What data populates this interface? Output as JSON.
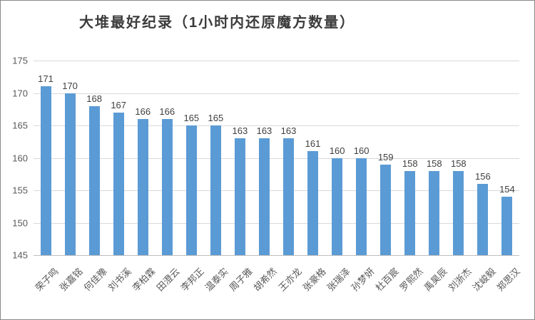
{
  "chart_data": {
    "type": "bar",
    "title": "大堆最好纪录（1小时内还原魔方数量）",
    "categories": [
      "荣子鸣",
      "张嘉铭",
      "何佳豫",
      "刘书溪",
      "李柏霖",
      "田澄云",
      "李邦正",
      "温泰实",
      "周子雅",
      "胡希然",
      "王亦龙",
      "张豪格",
      "张瑞泽",
      "孙梦妍",
      "杜百宸",
      "罗熙然",
      "禹昊辰",
      "刘浙杰",
      "沈峻毅",
      "郑思汉"
    ],
    "values": [
      171,
      170,
      168,
      167,
      166,
      166,
      165,
      165,
      163,
      163,
      163,
      161,
      160,
      160,
      159,
      158,
      158,
      158,
      156,
      154
    ],
    "yticks": [
      175,
      170,
      165,
      160,
      155,
      150,
      145
    ],
    "ymin": 145,
    "ymax": 175,
    "xlabel": "",
    "ylabel": "",
    "grid": "horizontal",
    "legend": "none",
    "data_labels": "above-bars",
    "colors": {
      "bar": "#5b9bd5",
      "gridline": "#d9d9d9",
      "axis_line": "#bfbfbf",
      "tick_text": "#595959",
      "value_text": "#404040",
      "title_text": "#3b3b3b",
      "frame_border": "#898989"
    }
  }
}
